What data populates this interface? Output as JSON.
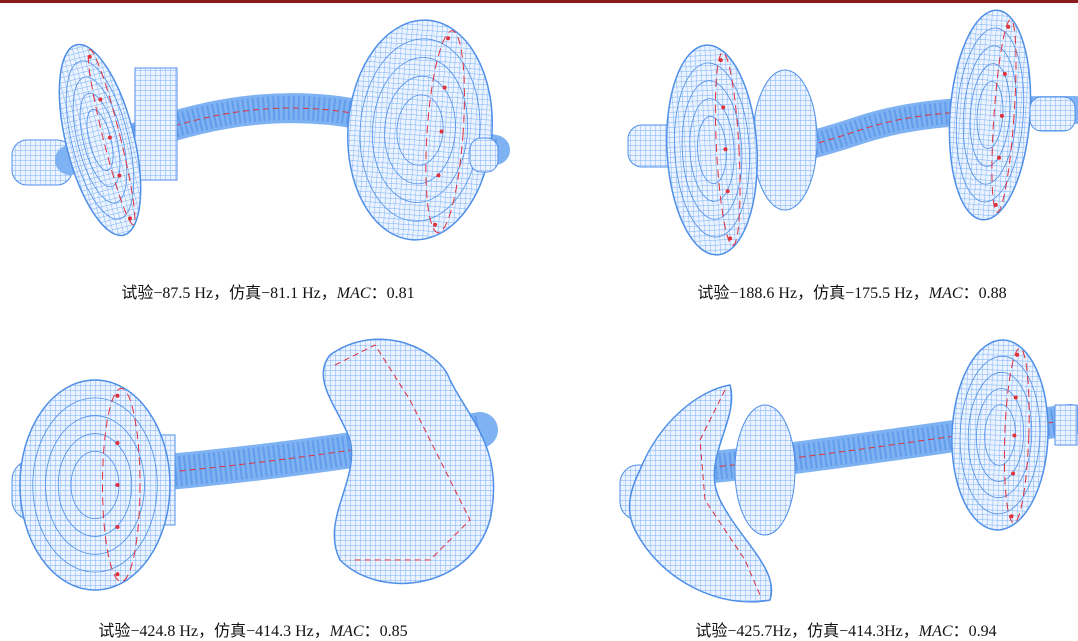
{
  "figure": {
    "panels": [
      {
        "caption": [
          "试验−87.5 Hz，仿真−81.1 Hz，",
          "MAC",
          "：0.81"
        ]
      },
      {
        "caption": [
          "试验−188.6 Hz，仿真−175.5 Hz，",
          "MAC",
          "：0.88"
        ]
      },
      {
        "caption": [
          "试验−424.8 Hz，仿真−414.3 Hz，",
          "MAC",
          "：0.85"
        ]
      },
      {
        "caption": [
          "试验−425.7Hz，仿真−414.3Hz，",
          "MAC",
          "：0.94"
        ]
      }
    ]
  }
}
